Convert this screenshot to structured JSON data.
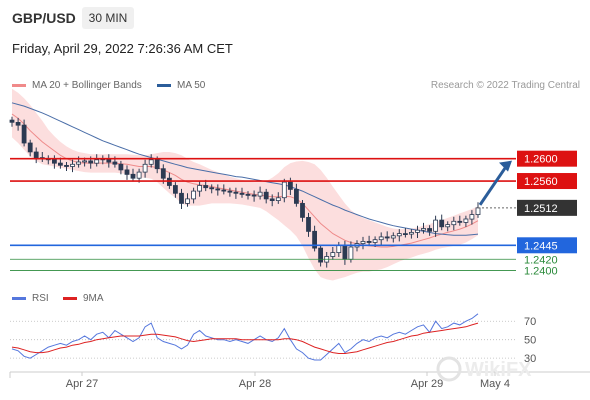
{
  "header": {
    "pair": "GBP/USD",
    "timeframe": "30 MIN"
  },
  "timestamp": "Friday, April 29, 2022 7:26:36 AM CET",
  "legend_main": [
    {
      "label": "MA 20 + Bollinger Bands",
      "color": "#f08a8a"
    },
    {
      "label": "MA 50",
      "color": "#2b5d9a"
    }
  ],
  "legend_rsi": [
    {
      "label": "RSI",
      "color": "#5577dd"
    },
    {
      "label": "9MA",
      "color": "#dd2222"
    }
  ],
  "copyright": "Research © 2022 Trading Central",
  "watermark": "WikiFX",
  "chart_data": {
    "type": "candlestick",
    "price_range": [
      1.2365,
      1.2705
    ],
    "x_ticks": [
      "Apr 27",
      "Apr 28",
      "Apr 29",
      "May 4"
    ],
    "levels": [
      {
        "label": "1.2600",
        "value": 1.26,
        "kind": "resistance",
        "color": "#dd1111"
      },
      {
        "label": "1.2560",
        "value": 1.256,
        "kind": "resistance",
        "color": "#dd1111"
      },
      {
        "label": "1.2512",
        "value": 1.2512,
        "kind": "current",
        "color": "#333333"
      },
      {
        "label": "1.2445",
        "value": 1.2445,
        "kind": "support",
        "color": "#2266dd"
      },
      {
        "label": "1.2420",
        "value": 1.242,
        "kind": "support",
        "color": "#2a8a3a"
      },
      {
        "label": "1.2400",
        "value": 1.24,
        "kind": "support",
        "color": "#2a8a3a"
      }
    ],
    "target": {
      "from": 1.2512,
      "to": 1.26
    },
    "close": [
      1.2665,
      1.266,
      1.2628,
      1.2612,
      1.2602,
      1.26,
      1.2598,
      1.2592,
      1.2588,
      1.2586,
      1.259,
      1.2594,
      1.2596,
      1.2592,
      1.2598,
      1.26,
      1.2594,
      1.259,
      1.258,
      1.2572,
      1.2565,
      1.2576,
      1.259,
      1.2598,
      1.2582,
      1.2565,
      1.2552,
      1.2538,
      1.252,
      1.2528,
      1.2542,
      1.2552,
      1.2548,
      1.2546,
      1.2544,
      1.2542,
      1.254,
      1.2538,
      1.2536,
      1.2535,
      1.2533,
      1.254,
      1.2528,
      1.2525,
      1.253,
      1.2558,
      1.2545,
      1.252,
      1.2495,
      1.247,
      1.244,
      1.2415,
      1.2425,
      1.2432,
      1.2445,
      1.242,
      1.2442,
      1.2448,
      1.2452,
      1.245,
      1.2455,
      1.246,
      1.2458,
      1.2462,
      1.2466,
      1.2465,
      1.2468,
      1.2472,
      1.2475,
      1.247,
      1.249,
      1.2478,
      1.2482,
      1.2488,
      1.2486,
      1.2492,
      1.25,
      1.2512
    ],
    "ma20": [
      1.268,
      1.2672,
      1.2662,
      1.265,
      1.264,
      1.263,
      1.2622,
      1.2614,
      1.2606,
      1.26,
      1.2596,
      1.2593,
      1.2592,
      1.2592,
      1.2592,
      1.2592,
      1.2592,
      1.2592,
      1.2591,
      1.259,
      1.2588,
      1.2586,
      1.2586,
      1.2586,
      1.2584,
      1.258,
      1.2575,
      1.257,
      1.2563,
      1.2558,
      1.2555,
      1.2553,
      1.2552,
      1.255,
      1.2548,
      1.2546,
      1.2544,
      1.2542,
      1.254,
      1.2538,
      1.2536,
      1.2535,
      1.2533,
      1.2532,
      1.2532,
      1.2533,
      1.2532,
      1.2528,
      1.252,
      1.2508,
      1.2496,
      1.2484,
      1.2475,
      1.2466,
      1.246,
      1.2454,
      1.245,
      1.2448,
      1.2446,
      1.2444,
      1.2443,
      1.2442,
      1.2442,
      1.2443,
      1.2445,
      1.2447,
      1.2449,
      1.2452,
      1.2455,
      1.2458,
      1.2462,
      1.2465,
      1.2468,
      1.2471,
      1.2474,
      1.2478,
      1.2483,
      1.2489
    ],
    "ma50": [
      1.27,
      1.2697,
      1.2694,
      1.269,
      1.2686,
      1.2682,
      1.2677,
      1.2672,
      1.2667,
      1.2662,
      1.2657,
      1.2652,
      1.2647,
      1.2642,
      1.2637,
      1.2632,
      1.2628,
      1.2624,
      1.262,
      1.2616,
      1.2612,
      1.2608,
      1.2605,
      1.2602,
      1.2599,
      1.2596,
      1.2593,
      1.259,
      1.2587,
      1.2584,
      1.2582,
      1.258,
      1.2578,
      1.2576,
      1.2574,
      1.2572,
      1.257,
      1.2568,
      1.2567,
      1.2565,
      1.2563,
      1.2561,
      1.2559,
      1.2557,
      1.2555,
      1.2553,
      1.255,
      1.2546,
      1.2542,
      1.2537,
      1.2532,
      1.2527,
      1.2522,
      1.2517,
      1.2513,
      1.2508,
      1.2504,
      1.25,
      1.2496,
      1.2492,
      1.2489,
      1.2486,
      1.2483,
      1.248,
      1.2478,
      1.2476,
      1.2474,
      1.2472,
      1.247,
      1.2468,
      1.2466,
      1.2465,
      1.2464,
      1.2463,
      1.2463,
      1.2463,
      1.2464,
      1.2465
    ],
    "bb_upper": [
      1.2725,
      1.2718,
      1.2708,
      1.2696,
      1.2682,
      1.2668,
      1.2652,
      1.264,
      1.263,
      1.2622,
      1.2616,
      1.2612,
      1.261,
      1.2608,
      1.2608,
      1.2608,
      1.2608,
      1.2608,
      1.2608,
      1.2608,
      1.2607,
      1.2606,
      1.2606,
      1.2608,
      1.261,
      1.2612,
      1.2612,
      1.261,
      1.2606,
      1.26,
      1.2594,
      1.259,
      1.2585,
      1.258,
      1.2576,
      1.2572,
      1.2568,
      1.2565,
      1.2562,
      1.256,
      1.2558,
      1.2558,
      1.256,
      1.2566,
      1.2574,
      1.2585,
      1.2592,
      1.2595,
      1.2596,
      1.2594,
      1.259,
      1.258,
      1.2566,
      1.255,
      1.2535,
      1.252,
      1.2508,
      1.25,
      1.2494,
      1.249,
      1.2486,
      1.2482,
      1.2478,
      1.2475,
      1.2474,
      1.2474,
      1.2475,
      1.2477,
      1.248,
      1.2483,
      1.2487,
      1.249,
      1.2494,
      1.2498,
      1.2502,
      1.2506,
      1.251,
      1.2515
    ],
    "bb_lower": [
      1.2638,
      1.2628,
      1.2616,
      1.2604,
      1.2596,
      1.259,
      1.2588,
      1.2586,
      1.2584,
      1.2582,
      1.258,
      1.2578,
      1.2576,
      1.2575,
      1.2575,
      1.2575,
      1.2575,
      1.2575,
      1.2574,
      1.2572,
      1.257,
      1.2566,
      1.2566,
      1.2564,
      1.2558,
      1.2548,
      1.2538,
      1.253,
      1.252,
      1.2516,
      1.2516,
      1.2516,
      1.2518,
      1.252,
      1.252,
      1.252,
      1.252,
      1.2519,
      1.2518,
      1.2516,
      1.2514,
      1.2512,
      1.2506,
      1.2498,
      1.249,
      1.2481,
      1.2472,
      1.2461,
      1.2444,
      1.2422,
      1.2402,
      1.2388,
      1.2384,
      1.2382,
      1.2385,
      1.2388,
      1.2392,
      1.2396,
      1.2398,
      1.2398,
      1.24,
      1.2402,
      1.2406,
      1.2411,
      1.2416,
      1.242,
      1.2423,
      1.2427,
      1.243,
      1.2433,
      1.2437,
      1.244,
      1.2442,
      1.2444,
      1.2446,
      1.245,
      1.2456,
      1.2463
    ],
    "rsi_levels": [
      70,
      50,
      30
    ],
    "rsi_range": [
      15,
      80
    ],
    "rsi": [
      40,
      38,
      32,
      30,
      34,
      38,
      42,
      44,
      46,
      44,
      48,
      50,
      54,
      50,
      56,
      58,
      52,
      60,
      56,
      52,
      48,
      52,
      64,
      68,
      52,
      48,
      46,
      44,
      40,
      44,
      56,
      60,
      54,
      52,
      50,
      50,
      48,
      50,
      48,
      46,
      50,
      54,
      50,
      48,
      52,
      62,
      50,
      40,
      36,
      30,
      28,
      28,
      34,
      40,
      46,
      36,
      40,
      46,
      50,
      48,
      52,
      54,
      52,
      56,
      58,
      56,
      60,
      64,
      66,
      58,
      70,
      62,
      64,
      68,
      66,
      70,
      73,
      78
    ],
    "rsi_ma": [
      42,
      41,
      39,
      37,
      36,
      36,
      37,
      39,
      41,
      42,
      44,
      45,
      47,
      48,
      50,
      51,
      52,
      53,
      54,
      54,
      54,
      54,
      55,
      56,
      56,
      55,
      54,
      53,
      51,
      49,
      48,
      49,
      50,
      51,
      51,
      51,
      51,
      51,
      50,
      50,
      50,
      50,
      50,
      50,
      50,
      51,
      51,
      50,
      48,
      45,
      42,
      40,
      38,
      36,
      35,
      35,
      36,
      37,
      39,
      41,
      43,
      45,
      47,
      48,
      50,
      52,
      54,
      55,
      57,
      58,
      59,
      60,
      61,
      62,
      63,
      64,
      66,
      68
    ]
  }
}
